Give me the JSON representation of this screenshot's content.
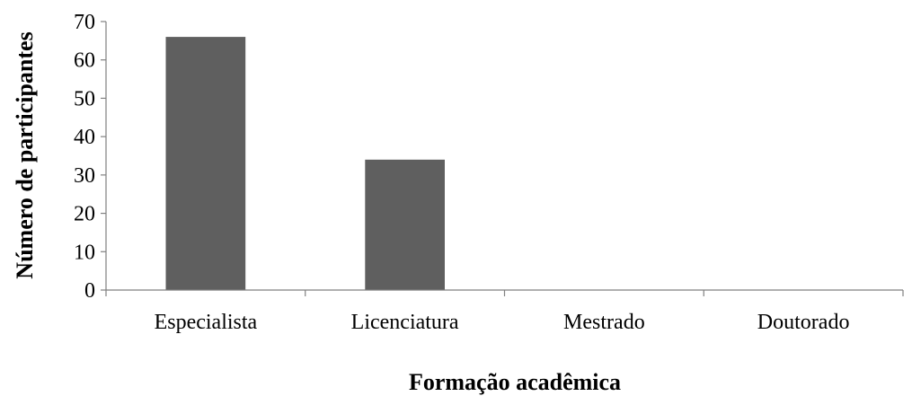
{
  "chart_data": {
    "type": "bar",
    "categories": [
      "Especialista",
      "Licenciatura",
      "Mestrado",
      "Doutorado"
    ],
    "values": [
      66,
      34,
      0,
      0
    ],
    "xlabel": "Formação acadêmica",
    "ylabel": "Número de participantes",
    "ylim": [
      0,
      70
    ],
    "yticks": [
      0,
      10,
      20,
      30,
      40,
      50,
      60,
      70
    ],
    "grid": false,
    "legend": "none",
    "bar_color": "#5f5f5f",
    "axis_color": "#808080"
  }
}
